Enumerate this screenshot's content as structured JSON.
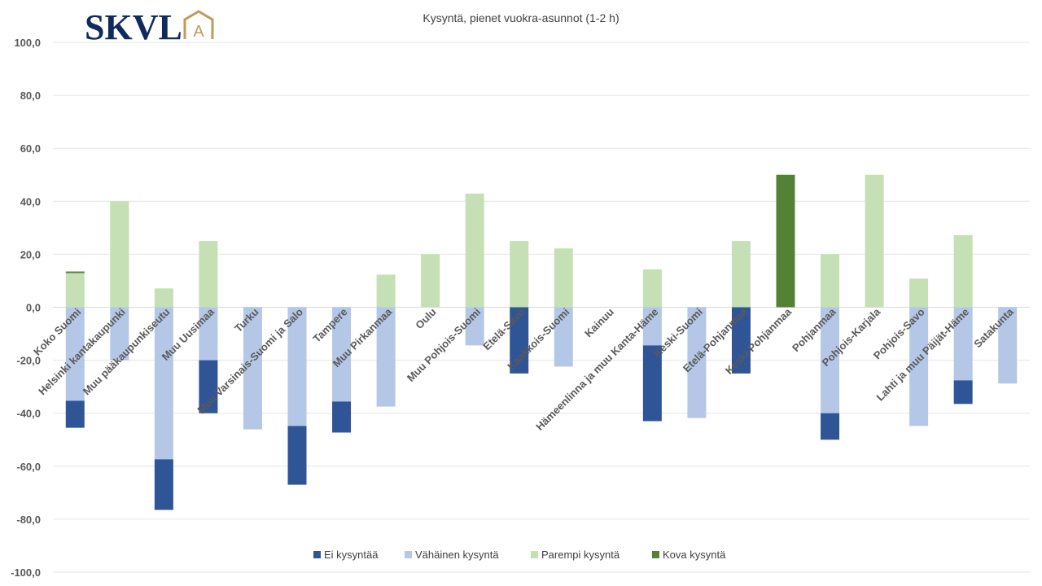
{
  "logo": {
    "text": "SKVL",
    "badge": "A"
  },
  "colors": {
    "ei": "#2f5597",
    "vahainen": "#b4c7e7",
    "parempi": "#c5e0b4",
    "kova": "#548235",
    "logo_blue": "#0f2a5c",
    "logo_gold": "#c09a5b"
  },
  "chart_data": {
    "type": "bar",
    "stacked": true,
    "title": "Kysyntä, pienet vuokra-asunnot  (1-2 h)",
    "ylim": [
      -100,
      100
    ],
    "yticks": [
      "100,0",
      "80,0",
      "60,0",
      "40,0",
      "20,0",
      "0,0",
      "-20,0",
      "-40,0",
      "-60,0",
      "-80,0",
      "-100,0"
    ],
    "ytick_values": [
      100,
      80,
      60,
      40,
      20,
      0,
      -20,
      -40,
      -60,
      -80,
      -100
    ],
    "grid": true,
    "legend_position": "bottom",
    "categories": [
      "Koko Suomi",
      "Helsinki kantakaupunki",
      "Muu pääkaupunkiseutu",
      "Muu Uusimaa",
      "Turku",
      "Muu Varsinais-Suomi ja Salo",
      "Tampere",
      "Muu Pirkanmaa",
      "Oulu",
      "Muu Pohjois-Suomi",
      "Etelä-Savo",
      "Kaakkois-Suomi",
      "Kainuu",
      "Hämeenlinna ja muu Kanta-Häme",
      "Keski-Suomi",
      "Etelä-Pohjanmaa",
      "Keski-Pohjanmaa",
      "Pohjanmaa",
      "Pohjois-Karjala",
      "Pohjois-Savo",
      "Lahti ja muu Päijät-Häme",
      "Satakunta"
    ],
    "series": [
      {
        "name": "Ei kysyntää",
        "key": "ei",
        "values": [
          -10.2,
          0,
          -19.1,
          -20,
          0,
          -22.2,
          -11.7,
          0,
          0,
          0,
          -25,
          0,
          0,
          -28.6,
          0,
          -25,
          0,
          -10,
          0,
          0,
          -8.9,
          0
        ]
      },
      {
        "name": "Vähäinen kysyntä",
        "key": "vahainen",
        "values": [
          -35.3,
          -20,
          -57.4,
          -20,
          -46.1,
          -44.8,
          -35.6,
          -37.5,
          0,
          -14.4,
          0,
          -22.4,
          0,
          -14.4,
          -41.8,
          0,
          0,
          -40,
          0,
          -44.8,
          -27.6,
          -28.8
        ]
      },
      {
        "name": "Parempi kysyntä",
        "key": "parempi",
        "values": [
          12.9,
          40,
          7.1,
          25,
          0,
          0,
          0,
          12.3,
          20,
          42.9,
          25,
          22.2,
          0,
          14.3,
          0,
          25,
          0,
          20,
          50,
          10.8,
          27.2,
          0
        ]
      },
      {
        "name": "Kova kysyntä",
        "key": "kova",
        "values": [
          0.6,
          0,
          0,
          0,
          0,
          0,
          0,
          0,
          0,
          0,
          0,
          0,
          0,
          0,
          0,
          0,
          50,
          0,
          0,
          0,
          0,
          0
        ]
      }
    ]
  }
}
